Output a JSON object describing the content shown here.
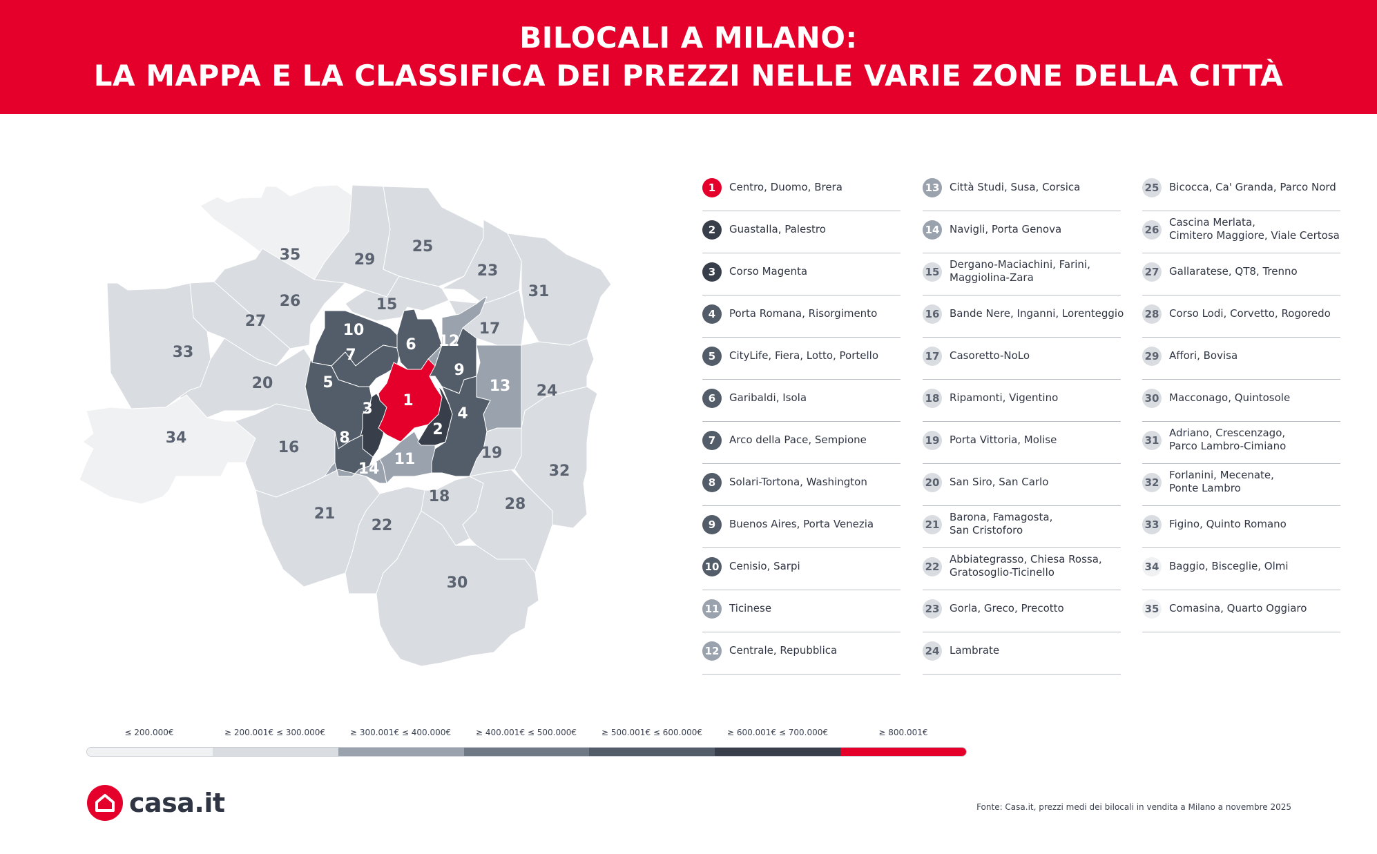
{
  "header": {
    "title_line1": "BILOCALI A MILANO:",
    "title_line2": "LA MAPPA E LA CLASSIFICA DEI PREZZI NELLE VARIE ZONE DELLA CITTÀ"
  },
  "colors": {
    "brand_red": "#e4002b",
    "tier1": "#f0f1f3",
    "tier2": "#d9dce0",
    "tier3": "#9aa2ad",
    "tier4": "#6f7885",
    "tier5": "#535c69",
    "tier6": "#383f4b",
    "tier7": "#e4002b"
  },
  "legend": [
    {
      "label": "≤ 200.000€",
      "tier": 1
    },
    {
      "label": "≥ 200.001€ ≤ 300.000€",
      "tier": 2
    },
    {
      "label": "≥ 300.001€ ≤ 400.000€",
      "tier": 3
    },
    {
      "label": "≥ 400.001€ ≤ 500.000€",
      "tier": 4
    },
    {
      "label": "≥ 500.001€ ≤ 600.000€",
      "tier": 5
    },
    {
      "label": "≥ 600.001€ ≤ 700.000€",
      "tier": 6
    },
    {
      "label": "≥  800.001€",
      "tier": 7
    }
  ],
  "zones": [
    {
      "n": "1",
      "name": "Centro, Duomo, Brera",
      "tier": 7
    },
    {
      "n": "2",
      "name": "Guastalla, Palestro",
      "tier": 6
    },
    {
      "n": "3",
      "name": "Corso Magenta",
      "tier": 6
    },
    {
      "n": "4",
      "name": "Porta Romana, Risorgimento",
      "tier": 5
    },
    {
      "n": "5",
      "name": "CityLife, Fiera, Lotto, Portello",
      "tier": 5
    },
    {
      "n": "6",
      "name": "Garibaldi, Isola",
      "tier": 5
    },
    {
      "n": "7",
      "name": "Arco della Pace, Sempione",
      "tier": 5
    },
    {
      "n": "8",
      "name": "Solari-Tortona, Washington",
      "tier": 5
    },
    {
      "n": "9",
      "name": "Buenos Aires, Porta Venezia",
      "tier": 5
    },
    {
      "n": "10",
      "name": "Cenisio, Sarpi",
      "tier": 5
    },
    {
      "n": "11",
      "name": "Ticinese",
      "tier": 3
    },
    {
      "n": "12",
      "name": "Centrale, Repubblica",
      "tier": 3
    },
    {
      "n": "13",
      "name": "Città Studi, Susa, Corsica",
      "tier": 3
    },
    {
      "n": "14",
      "name": "Navigli, Porta Genova",
      "tier": 3
    },
    {
      "n": "15",
      "name": "Dergano-Maciachini, Farini,\nMaggiolina-Zara",
      "tier": 2
    },
    {
      "n": "16",
      "name": "Bande Nere, Inganni, Lorenteggio",
      "tier": 2
    },
    {
      "n": "17",
      "name": "Casoretto-NoLo",
      "tier": 2
    },
    {
      "n": "18",
      "name": "Ripamonti, Vigentino",
      "tier": 2
    },
    {
      "n": "19",
      "name": "Porta Vittoria, Molise",
      "tier": 2
    },
    {
      "n": "20",
      "name": "San Siro, San Carlo",
      "tier": 2
    },
    {
      "n": "21",
      "name": "Barona, Famagosta,\nSan Cristoforo",
      "tier": 2
    },
    {
      "n": "22",
      "name": "Abbiategrasso, Chiesa Rossa,\nGratosoglio-Ticinello",
      "tier": 2
    },
    {
      "n": "23",
      "name": "Gorla, Greco, Precotto",
      "tier": 2
    },
    {
      "n": "24",
      "name": "Lambrate",
      "tier": 2
    },
    {
      "n": "25",
      "name": "Bicocca, Ca' Granda, Parco Nord",
      "tier": 2
    },
    {
      "n": "26",
      "name": "Cascina Merlata,\nCimitero Maggiore, Viale Certosa",
      "tier": 2
    },
    {
      "n": "27",
      "name": "Gallaratese, QT8, Trenno",
      "tier": 2
    },
    {
      "n": "28",
      "name": "Corso Lodi, Corvetto, Rogoredo",
      "tier": 2
    },
    {
      "n": "29",
      "name": "Affori, Bovisa",
      "tier": 2
    },
    {
      "n": "30",
      "name": "Macconago, Quintosole",
      "tier": 2
    },
    {
      "n": "31",
      "name": "Adriano, Crescenzago,\nParco Lambro-Cimiano",
      "tier": 2
    },
    {
      "n": "32",
      "name": "Forlanini, Mecenate,\nPonte Lambro",
      "tier": 2
    },
    {
      "n": "33",
      "name": "Figino, Quinto Romano",
      "tier": 2
    },
    {
      "n": "34",
      "name": "Baggio, Bisceglie, Olmi",
      "tier": 1
    },
    {
      "n": "35",
      "name": "Comasina, Quarto Oggiaro",
      "tier": 1
    }
  ],
  "logo": {
    "text": "casa.it"
  },
  "footer": {
    "source": "Fonte: Casa.it, prezzi medi dei bilocali in vendita a Milano a novembre 2025"
  }
}
